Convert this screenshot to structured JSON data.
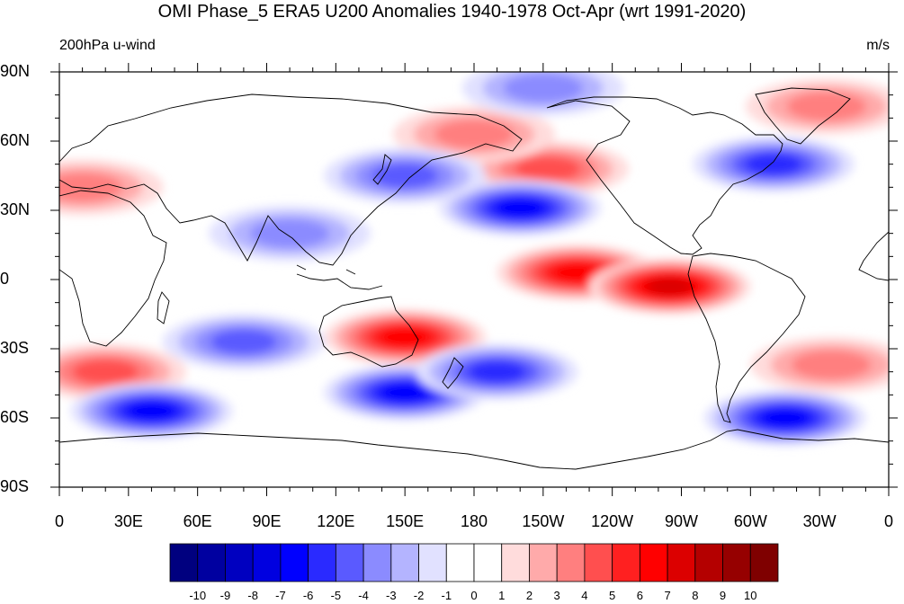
{
  "title": "OMI Phase_5 ERA5 U200 Anomalies 1940-1978 Oct-Apr (wrt 1991-2020)",
  "left_label": "200hPa u-wind",
  "right_label": "m/s",
  "lat_labels": [
    "90N",
    "60N",
    "30N",
    "0",
    "30S",
    "60S",
    "90S"
  ],
  "lon_labels": [
    "0",
    "30E",
    "60E",
    "90E",
    "120E",
    "150E",
    "180",
    "150W",
    "120W",
    "90W",
    "60W",
    "30W",
    "0"
  ],
  "colorbar": {
    "labels": [
      "-10",
      "-9",
      "-8",
      "-7",
      "-6",
      "-5",
      "-4",
      "-3",
      "-2",
      "-1",
      "0",
      "1",
      "2",
      "3",
      "4",
      "5",
      "6",
      "7",
      "8",
      "9",
      "10"
    ],
    "colors": [
      "#00007f",
      "#0000a0",
      "#0000c0",
      "#0000e0",
      "#0000ff",
      "#2a2aff",
      "#5a5aff",
      "#8b8bff",
      "#b4b4ff",
      "#e1e1ff",
      "#ffffff",
      "#ffffff",
      "#ffdcdc",
      "#ffaaaa",
      "#ff7f7f",
      "#ff4f4f",
      "#ff2020",
      "#ff0000",
      "#dc0000",
      "#b40000",
      "#960000",
      "#7f0000"
    ]
  },
  "map": {
    "projection": "cylindrical equidistant",
    "lon_range": [
      0,
      360
    ],
    "lat_range": [
      -90,
      90
    ],
    "anomaly_centers": [
      {
        "lon": 225,
        "lat": 3,
        "value": 6,
        "sign": "positive"
      },
      {
        "lon": 265,
        "lat": -3,
        "value": 7,
        "sign": "positive"
      },
      {
        "lon": 150,
        "lat": -25,
        "value": 6,
        "sign": "positive"
      },
      {
        "lon": 212,
        "lat": 48,
        "value": 4,
        "sign": "positive"
      },
      {
        "lon": 180,
        "lat": 63,
        "value": 3,
        "sign": "positive"
      },
      {
        "lon": 333,
        "lat": 75,
        "value": 3,
        "sign": "positive"
      },
      {
        "lon": 335,
        "lat": -37,
        "value": 3,
        "sign": "positive"
      },
      {
        "lon": 20,
        "lat": -40,
        "value": 4,
        "sign": "positive"
      },
      {
        "lon": 10,
        "lat": 40,
        "value": 3,
        "sign": "positive"
      },
      {
        "lon": 200,
        "lat": 31,
        "value": -6,
        "sign": "negative"
      },
      {
        "lon": 310,
        "lat": 50,
        "value": -5,
        "sign": "negative"
      },
      {
        "lon": 150,
        "lat": 45,
        "value": -4,
        "sign": "negative"
      },
      {
        "lon": 40,
        "lat": -57,
        "value": -6,
        "sign": "negative"
      },
      {
        "lon": 150,
        "lat": -49,
        "value": -6,
        "sign": "negative"
      },
      {
        "lon": 190,
        "lat": -40,
        "value": -5,
        "sign": "negative"
      },
      {
        "lon": 315,
        "lat": -60,
        "value": -6,
        "sign": "negative"
      },
      {
        "lon": 80,
        "lat": -27,
        "value": -4,
        "sign": "negative"
      },
      {
        "lon": 100,
        "lat": 20,
        "value": -3,
        "sign": "negative"
      },
      {
        "lon": 210,
        "lat": 83,
        "value": -3,
        "sign": "negative"
      }
    ]
  }
}
